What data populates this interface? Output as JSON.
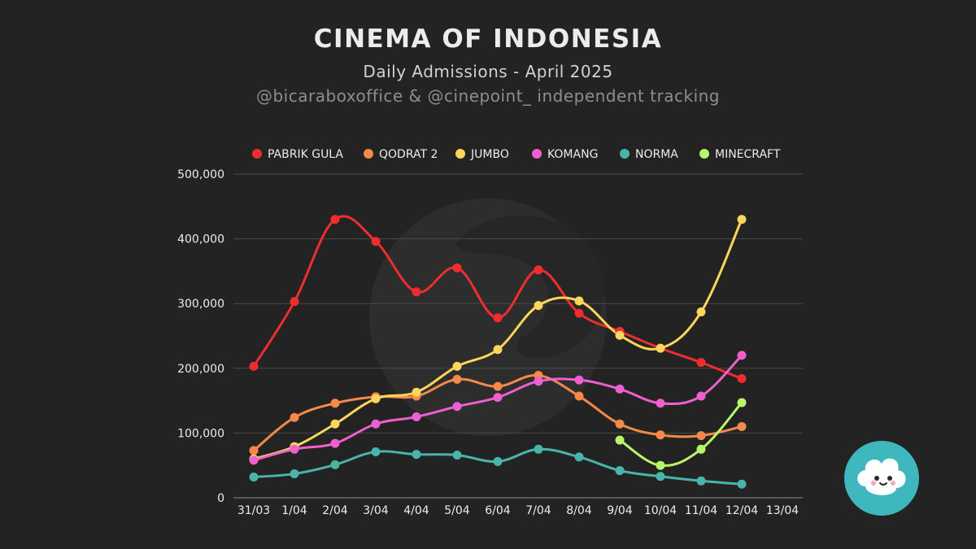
{
  "header": {
    "title": "CINEMA OF INDONESIA",
    "subtitle": "Daily Admissions - April 2025",
    "credit": "@bicaraboxoffice & @cinepoint_ independent tracking"
  },
  "chart_data": {
    "type": "line",
    "title": "CINEMA OF INDONESIA",
    "subtitle": "Daily Admissions - April 2025",
    "xlabel": "",
    "ylabel": "",
    "categories": [
      "31/03",
      "1/04",
      "2/04",
      "3/04",
      "4/04",
      "5/04",
      "6/04",
      "7/04",
      "8/04",
      "9/04",
      "10/04",
      "11/04",
      "12/04",
      "13/04"
    ],
    "ylim": [
      0,
      500000
    ],
    "yticks": [
      0,
      100000,
      200000,
      300000,
      400000,
      500000
    ],
    "ytick_labels": [
      "0",
      "100,000",
      "200,000",
      "300,000",
      "400,000",
      "500,000"
    ],
    "grid": true,
    "legend_position": "top",
    "series": [
      {
        "name": "PABRIK GULA",
        "color": "#ee2e2e",
        "values": [
          203000,
          303000,
          430000,
          396000,
          318000,
          355000,
          278000,
          352000,
          285000,
          257000,
          231000,
          209000,
          184000,
          null
        ]
      },
      {
        "name": "QODRAT 2",
        "color": "#f5894a",
        "values": [
          73000,
          124000,
          146000,
          156000,
          157000,
          183000,
          172000,
          189000,
          157000,
          114000,
          97000,
          96000,
          110000,
          null
        ]
      },
      {
        "name": "JUMBO",
        "color": "#fbd65a",
        "values": [
          60000,
          79000,
          114000,
          153000,
          163000,
          203000,
          229000,
          297000,
          304000,
          251000,
          231000,
          287000,
          430000,
          null
        ]
      },
      {
        "name": "KOMANG",
        "color": "#ee5fcf",
        "values": [
          58000,
          75000,
          84000,
          114000,
          125000,
          141000,
          155000,
          180000,
          182000,
          168000,
          146000,
          157000,
          220000,
          null
        ]
      },
      {
        "name": "NORMA",
        "color": "#4bb4aa",
        "values": [
          32000,
          37000,
          51000,
          71000,
          67000,
          66000,
          56000,
          75000,
          63000,
          42000,
          33000,
          26000,
          21000,
          null
        ]
      },
      {
        "name": "MINECRAFT",
        "color": "#b9f56a",
        "values": [
          null,
          null,
          null,
          null,
          null,
          null,
          null,
          null,
          null,
          89000,
          50000,
          75000,
          147000,
          null
        ]
      }
    ]
  },
  "colors": {
    "background": "#232323",
    "grid": "#4a4a4a",
    "tick_text": "#ececec",
    "watermark": "#2f2f2f",
    "logo_bg": "#3fb7bf"
  },
  "icons": {
    "watermark": "cinepoint-watermark-icon",
    "logo": "popcorn-mascot-icon"
  }
}
